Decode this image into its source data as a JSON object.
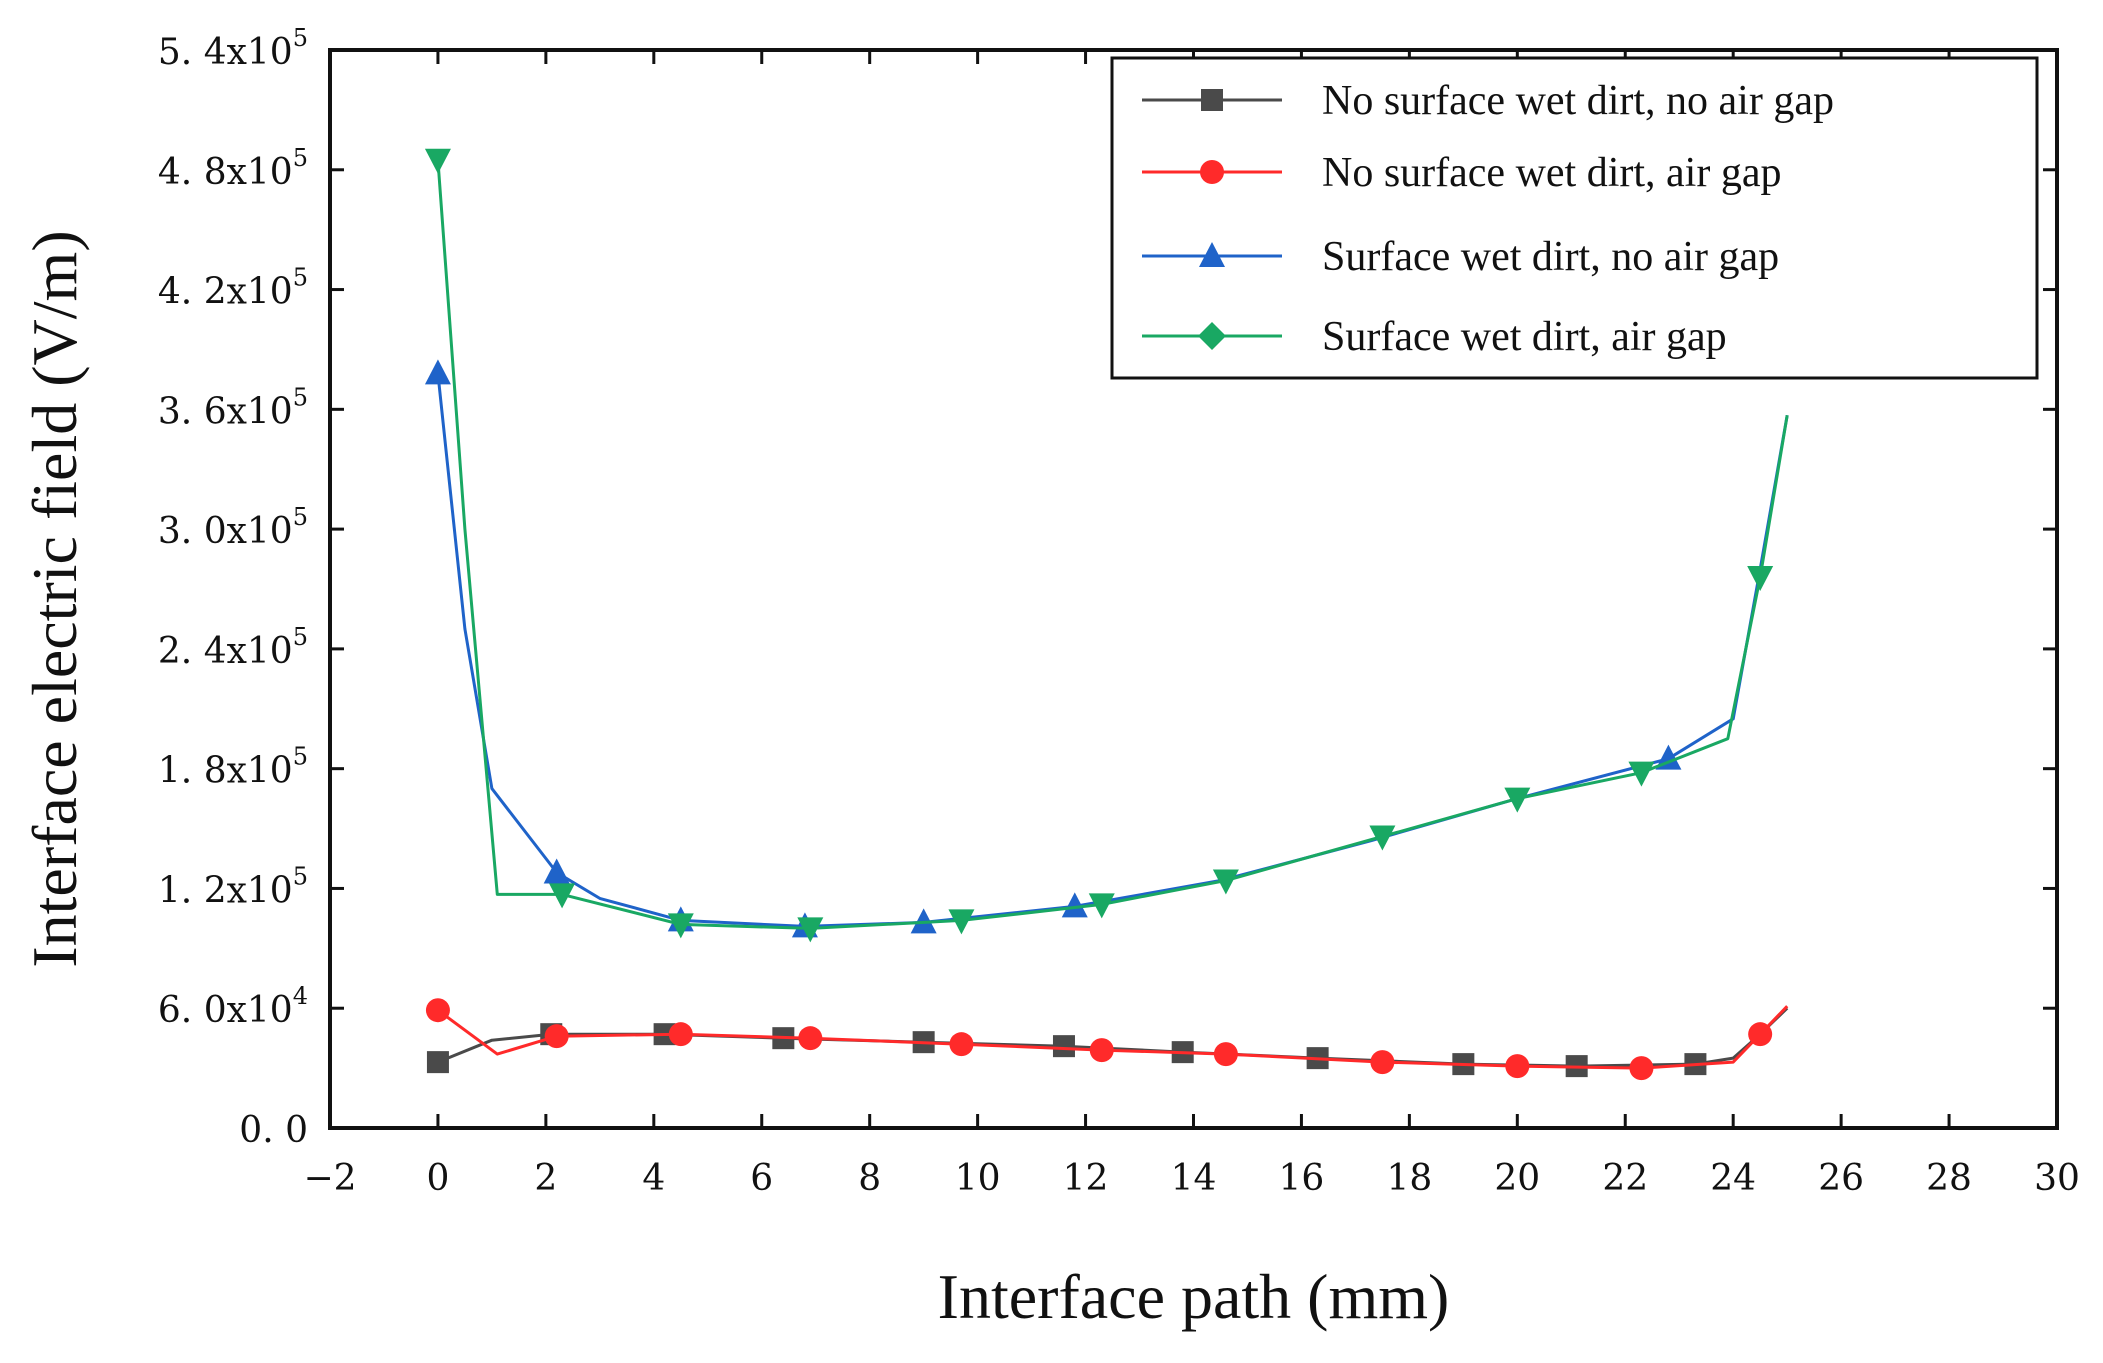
{
  "chart_data": {
    "type": "line",
    "title": "",
    "xlabel": "Interface path (mm)",
    "ylabel": "Interface electric field (V/m)",
    "xlim": [
      -2,
      30
    ],
    "ylim": [
      0,
      540000
    ],
    "x_ticks": [
      -2,
      0,
      2,
      4,
      6,
      8,
      10,
      12,
      14,
      16,
      18,
      20,
      22,
      24,
      26,
      28,
      30
    ],
    "x_tick_labels": [
      "−2",
      "0",
      "2",
      "4",
      "6",
      "8",
      "10",
      "12",
      "14",
      "16",
      "18",
      "20",
      "22",
      "24",
      "26",
      "28",
      "30"
    ],
    "y_ticks": [
      0,
      60000,
      120000,
      180000,
      240000,
      300000,
      360000,
      420000,
      480000,
      540000
    ],
    "y_tick_labels": [
      {
        "mantissa": "0. 0",
        "exp": ""
      },
      {
        "mantissa": "6. 0x10",
        "exp": "4"
      },
      {
        "mantissa": "1. 2x10",
        "exp": "5"
      },
      {
        "mantissa": "1. 8x10",
        "exp": "5"
      },
      {
        "mantissa": "2. 4x10",
        "exp": "5"
      },
      {
        "mantissa": "3. 0x10",
        "exp": "5"
      },
      {
        "mantissa": "3. 6x10",
        "exp": "5"
      },
      {
        "mantissa": "4. 2x10",
        "exp": "5"
      },
      {
        "mantissa": "4. 8x10",
        "exp": "5"
      },
      {
        "mantissa": "5. 4x10",
        "exp": "5"
      }
    ],
    "legend_position": "top-right",
    "series": [
      {
        "name": "No surface wet dirt, no air gap",
        "color": "#4a4a4a",
        "marker": "square",
        "line": [
          [
            0,
            33000
          ],
          [
            1,
            44000
          ],
          [
            2.1,
            47000
          ],
          [
            4.2,
            47000
          ],
          [
            6.4,
            45000
          ],
          [
            9,
            43000
          ],
          [
            11.6,
            41000
          ],
          [
            13.8,
            38000
          ],
          [
            16.3,
            35000
          ],
          [
            19,
            32000
          ],
          [
            21.1,
            31000
          ],
          [
            23.3,
            32000
          ],
          [
            24,
            35000
          ],
          [
            24.5,
            47000
          ],
          [
            25,
            60000
          ]
        ],
        "markers": [
          [
            0,
            33000
          ],
          [
            2.1,
            47000
          ],
          [
            4.2,
            47000
          ],
          [
            6.4,
            45000
          ],
          [
            9,
            43000
          ],
          [
            11.6,
            41000
          ],
          [
            13.8,
            38000
          ],
          [
            16.3,
            35000
          ],
          [
            19,
            32000
          ],
          [
            21.1,
            31000
          ],
          [
            23.3,
            32000
          ]
        ]
      },
      {
        "name": "No surface wet dirt, air gap",
        "color": "#ff2a2a",
        "marker": "circle",
        "line": [
          [
            0,
            59000
          ],
          [
            1.1,
            37000
          ],
          [
            2.2,
            46000
          ],
          [
            4.5,
            47000
          ],
          [
            6.9,
            45000
          ],
          [
            9.7,
            42000
          ],
          [
            12.3,
            39000
          ],
          [
            14.6,
            37000
          ],
          [
            17.5,
            33000
          ],
          [
            20,
            31000
          ],
          [
            22.3,
            30000
          ],
          [
            24,
            33000
          ],
          [
            24.5,
            47000
          ],
          [
            25,
            61000
          ]
        ],
        "markers": [
          [
            0,
            59000
          ],
          [
            2.2,
            46000
          ],
          [
            4.5,
            47000
          ],
          [
            6.9,
            45000
          ],
          [
            9.7,
            42000
          ],
          [
            12.3,
            39000
          ],
          [
            14.6,
            37000
          ],
          [
            17.5,
            33000
          ],
          [
            20,
            31000
          ],
          [
            22.3,
            30000
          ],
          [
            24.5,
            47000
          ]
        ]
      },
      {
        "name": "Surface wet dirt, no air gap",
        "color": "#1f63c9",
        "marker": "triangle-up",
        "line": [
          [
            0,
            378000
          ],
          [
            0.5,
            250000
          ],
          [
            1,
            170000
          ],
          [
            2.2,
            128000
          ],
          [
            3,
            115000
          ],
          [
            4.5,
            104000
          ],
          [
            6.8,
            101000
          ],
          [
            9,
            103000
          ],
          [
            11.8,
            111000
          ],
          [
            14.5,
            124000
          ],
          [
            17.3,
            144000
          ],
          [
            20,
            165000
          ],
          [
            22.8,
            185000
          ],
          [
            24,
            205000
          ],
          [
            24.5,
            280000
          ],
          [
            25,
            357000
          ]
        ],
        "markers": [
          [
            0,
            378000
          ],
          [
            2.2,
            128000
          ],
          [
            4.5,
            104000
          ],
          [
            6.8,
            101000
          ],
          [
            9,
            103000
          ],
          [
            11.8,
            111000
          ],
          [
            22.8,
            185000
          ]
        ]
      },
      {
        "name": "Surface wet dirt, air gap",
        "color": "#19a863",
        "marker": "diamond",
        "line": [
          [
            0,
            485000
          ],
          [
            0.5,
            300000
          ],
          [
            1.1,
            117000
          ],
          [
            2.3,
            117000
          ],
          [
            4.5,
            102000
          ],
          [
            6.9,
            100000
          ],
          [
            9.7,
            104000
          ],
          [
            12.3,
            112000
          ],
          [
            14.6,
            124000
          ],
          [
            17.5,
            146000
          ],
          [
            20,
            165000
          ],
          [
            22.3,
            178000
          ],
          [
            23.9,
            195000
          ],
          [
            24.5,
            276000
          ],
          [
            25,
            357000
          ]
        ],
        "markers": [
          [
            0,
            485000
          ],
          [
            2.3,
            117000
          ],
          [
            4.5,
            102000
          ],
          [
            6.9,
            100000
          ],
          [
            9.7,
            104000
          ],
          [
            12.3,
            112000
          ],
          [
            14.6,
            124000
          ],
          [
            17.5,
            146000
          ],
          [
            20,
            165000
          ],
          [
            22.3,
            178000
          ],
          [
            24.5,
            276000
          ]
        ]
      }
    ]
  }
}
